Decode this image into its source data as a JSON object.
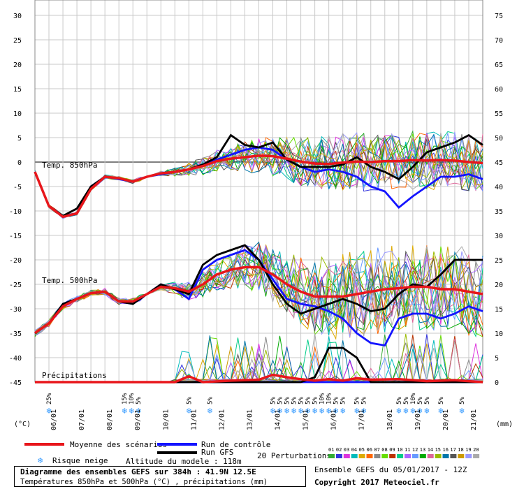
{
  "chart_data": {
    "type": "line",
    "x_labels": [
      "06/01",
      "07/01",
      "08/01",
      "09/01",
      "10/01",
      "11/01",
      "12/01",
      "13/01",
      "14/01",
      "15/01",
      "16/01",
      "17/01",
      "18/01",
      "19/01",
      "20/01",
      "21/01"
    ],
    "x_range_days": [
      0,
      16
    ],
    "left_axis": {
      "unit": "(°C)",
      "ticks": [
        30,
        25,
        20,
        15,
        10,
        5,
        0,
        -5,
        -10,
        -15,
        -20,
        -25,
        -30,
        -35,
        -40,
        -45
      ]
    },
    "right_axis": {
      "unit": "(mm)",
      "ticks": [
        75,
        70,
        65,
        60,
        55,
        50,
        45,
        40,
        35,
        30,
        25,
        20,
        15,
        10,
        5,
        0
      ]
    },
    "panel_labels": {
      "t850": "Temp. 850hPa",
      "t500": "Temp. 500hPa",
      "precip": "Précipitations"
    },
    "snow_risk": [
      {
        "day": 0.5,
        "pct": "25%"
      },
      {
        "day": 3.2,
        "pct": "15%"
      },
      {
        "day": 3.45,
        "pct": "10%"
      },
      {
        "day": 3.7,
        "pct": "5%"
      },
      {
        "day": 5.5,
        "pct": "5%"
      },
      {
        "day": 6.25,
        "pct": "5%"
      },
      {
        "day": 8.5,
        "pct": "5%"
      },
      {
        "day": 8.75,
        "pct": "5%"
      },
      {
        "day": 9.0,
        "pct": "5%"
      },
      {
        "day": 9.25,
        "pct": "5%"
      },
      {
        "day": 9.5,
        "pct": "5%"
      },
      {
        "day": 9.75,
        "pct": "5%"
      },
      {
        "day": 10.0,
        "pct": "5%"
      },
      {
        "day": 10.25,
        "pct": "10%"
      },
      {
        "day": 10.5,
        "pct": "10%"
      },
      {
        "day": 10.75,
        "pct": "5%"
      },
      {
        "day": 11.0,
        "pct": "5%"
      },
      {
        "day": 11.5,
        "pct": "5%"
      },
      {
        "day": 11.75,
        "pct": "5%"
      },
      {
        "day": 13.0,
        "pct": "5%"
      },
      {
        "day": 13.25,
        "pct": "5%"
      },
      {
        "day": 13.5,
        "pct": "10%"
      },
      {
        "day": 13.75,
        "pct": "5%"
      },
      {
        "day": 14.0,
        "pct": "5%"
      },
      {
        "day": 14.5,
        "pct": "5%"
      },
      {
        "day": 15.25,
        "pct": "5%"
      }
    ],
    "series": [
      {
        "name": "Moyenne des scénarios",
        "role": "mean",
        "color": "#e8161b",
        "t850": [
          [
            0,
            -2
          ],
          [
            0.5,
            -9
          ],
          [
            1,
            -11.2
          ],
          [
            1.5,
            -10.5
          ],
          [
            2,
            -5.5
          ],
          [
            2.5,
            -3
          ],
          [
            3,
            -3.3
          ],
          [
            3.5,
            -4
          ],
          [
            4,
            -3
          ],
          [
            4.5,
            -2.3
          ],
          [
            5,
            -2
          ],
          [
            5.5,
            -1.5
          ],
          [
            6,
            -0.8
          ],
          [
            6.5,
            0.2
          ],
          [
            7,
            0.7
          ],
          [
            7.5,
            1
          ],
          [
            8,
            1.3
          ],
          [
            8.5,
            1.2
          ],
          [
            9,
            0.7
          ],
          [
            9.5,
            0.1
          ],
          [
            10,
            -0.3
          ],
          [
            10.5,
            -0.4
          ],
          [
            11,
            -0.1
          ],
          [
            11.5,
            0.1
          ],
          [
            12,
            0
          ],
          [
            12.5,
            0.2
          ],
          [
            13,
            0.2
          ],
          [
            13.5,
            0.4
          ],
          [
            14,
            0.3
          ],
          [
            14.5,
            0.4
          ],
          [
            15,
            0.3
          ],
          [
            15.5,
            0
          ],
          [
            16,
            -0.2
          ]
        ],
        "t500": [
          [
            0,
            -35
          ],
          [
            0.5,
            -33
          ],
          [
            1,
            -29.5
          ],
          [
            1.5,
            -28
          ],
          [
            2,
            -26.8
          ],
          [
            2.5,
            -26.5
          ],
          [
            3,
            -28.5
          ],
          [
            3.5,
            -28.5
          ],
          [
            4,
            -27
          ],
          [
            4.5,
            -25.5
          ],
          [
            5,
            -25.8
          ],
          [
            5.5,
            -26.5
          ],
          [
            6,
            -25
          ],
          [
            6.5,
            -23
          ],
          [
            7,
            -22
          ],
          [
            7.5,
            -21.5
          ],
          [
            8,
            -21.5
          ],
          [
            8.5,
            -23
          ],
          [
            9,
            -25
          ],
          [
            9.5,
            -26.5
          ],
          [
            10,
            -27.5
          ],
          [
            10.5,
            -27.5
          ],
          [
            11,
            -27.5
          ],
          [
            11.5,
            -27
          ],
          [
            12,
            -26.5
          ],
          [
            12.5,
            -26
          ],
          [
            13,
            -25.8
          ],
          [
            13.5,
            -25.5
          ],
          [
            14,
            -25.5
          ],
          [
            14.5,
            -26
          ],
          [
            15,
            -26
          ],
          [
            15.5,
            -26.5
          ],
          [
            16,
            -27
          ]
        ],
        "precip": [
          [
            0,
            0
          ],
          [
            5,
            0
          ],
          [
            5.5,
            1.2
          ],
          [
            6,
            0
          ],
          [
            7,
            0.3
          ],
          [
            8,
            0.5
          ],
          [
            8.5,
            1.5
          ],
          [
            9,
            1
          ],
          [
            9.5,
            0.6
          ],
          [
            10,
            0.3
          ],
          [
            10.5,
            0.6
          ],
          [
            11,
            0.3
          ],
          [
            11.5,
            0.8
          ],
          [
            12,
            0.5
          ],
          [
            13,
            0.6
          ],
          [
            14,
            0.2
          ],
          [
            15,
            0.4
          ],
          [
            16,
            0
          ]
        ]
      },
      {
        "name": "Run de contrôle",
        "role": "control",
        "color": "#1414ff",
        "t850": [
          [
            0,
            -2
          ],
          [
            0.5,
            -9
          ],
          [
            1,
            -11
          ],
          [
            1.5,
            -10.5
          ],
          [
            2,
            -5
          ],
          [
            2.5,
            -3
          ],
          [
            3,
            -3.5
          ],
          [
            3.5,
            -4
          ],
          [
            4,
            -3
          ],
          [
            4.5,
            -2.5
          ],
          [
            5,
            -2
          ],
          [
            5.5,
            -1.5
          ],
          [
            6,
            -0.5
          ],
          [
            6.5,
            0.5
          ],
          [
            7,
            1.5
          ],
          [
            7.5,
            2.5
          ],
          [
            8,
            3
          ],
          [
            8.5,
            2.5
          ],
          [
            9,
            0.5
          ],
          [
            9.5,
            -1
          ],
          [
            10,
            -2
          ],
          [
            10.5,
            -1.5
          ],
          [
            11,
            -2
          ],
          [
            11.5,
            -3
          ],
          [
            12,
            -5
          ],
          [
            12.5,
            -6
          ],
          [
            13,
            -9.3
          ],
          [
            13.5,
            -7
          ],
          [
            14,
            -5
          ],
          [
            14.5,
            -3
          ],
          [
            15,
            -3
          ],
          [
            15.5,
            -2.5
          ],
          [
            16,
            -3.5
          ]
        ],
        "t500": [
          [
            0,
            -35
          ],
          [
            0.5,
            -33
          ],
          [
            1,
            -29
          ],
          [
            1.5,
            -28
          ],
          [
            2,
            -26.8
          ],
          [
            2.5,
            -26.5
          ],
          [
            3,
            -28.5
          ],
          [
            3.5,
            -29
          ],
          [
            4,
            -27
          ],
          [
            4.5,
            -25
          ],
          [
            5,
            -26
          ],
          [
            5.5,
            -28
          ],
          [
            6,
            -22
          ],
          [
            6.5,
            -20
          ],
          [
            7,
            -19
          ],
          [
            7.5,
            -18
          ],
          [
            8,
            -20
          ],
          [
            8.5,
            -24
          ],
          [
            9,
            -28
          ],
          [
            9.5,
            -29
          ],
          [
            10,
            -29.5
          ],
          [
            10.5,
            -30.5
          ],
          [
            11,
            -32
          ],
          [
            11.5,
            -35
          ],
          [
            12,
            -37
          ],
          [
            12.5,
            -37.5
          ],
          [
            13,
            -32
          ],
          [
            13.5,
            -31
          ],
          [
            14,
            -31
          ],
          [
            14.5,
            -32
          ],
          [
            15,
            -31
          ],
          [
            15.5,
            -29.5
          ],
          [
            16,
            -30.5
          ]
        ],
        "precip": [
          [
            0,
            0
          ],
          [
            16,
            0
          ]
        ]
      },
      {
        "name": "Run GFS",
        "role": "gfs",
        "color": "#000000",
        "t850": [
          [
            0,
            -2
          ],
          [
            0.5,
            -9
          ],
          [
            1,
            -11
          ],
          [
            1.5,
            -9.5
          ],
          [
            2,
            -5
          ],
          [
            2.5,
            -3
          ],
          [
            3,
            -3.3
          ],
          [
            3.5,
            -4
          ],
          [
            4,
            -3
          ],
          [
            4.5,
            -2.3
          ],
          [
            5,
            -2
          ],
          [
            5.5,
            -1.5
          ],
          [
            6,
            -0.5
          ],
          [
            6.5,
            1
          ],
          [
            7,
            5.5
          ],
          [
            7.5,
            3.5
          ],
          [
            8,
            3
          ],
          [
            8.5,
            4
          ],
          [
            9,
            0.5
          ],
          [
            9.5,
            -1
          ],
          [
            10,
            -1
          ],
          [
            10.5,
            -1
          ],
          [
            11,
            -0.5
          ],
          [
            11.5,
            1
          ],
          [
            12,
            -1
          ],
          [
            12.5,
            -2
          ],
          [
            13,
            -3.5
          ],
          [
            13.5,
            -1
          ],
          [
            14,
            2
          ],
          [
            14.5,
            3
          ],
          [
            15,
            4
          ],
          [
            15.5,
            5.5
          ],
          [
            16,
            3.5
          ]
        ],
        "t500": [
          [
            0,
            -35
          ],
          [
            0.5,
            -33
          ],
          [
            1,
            -29
          ],
          [
            1.5,
            -28
          ],
          [
            2,
            -26.8
          ],
          [
            2.5,
            -26.5
          ],
          [
            3,
            -28.5
          ],
          [
            3.5,
            -29
          ],
          [
            4,
            -27
          ],
          [
            4.5,
            -25
          ],
          [
            5,
            -26
          ],
          [
            5.5,
            -27
          ],
          [
            6,
            -21
          ],
          [
            6.5,
            -19
          ],
          [
            7,
            -18
          ],
          [
            7.5,
            -17
          ],
          [
            8,
            -20
          ],
          [
            8.5,
            -25
          ],
          [
            9,
            -29
          ],
          [
            9.5,
            -31
          ],
          [
            10,
            -30
          ],
          [
            10.5,
            -29
          ],
          [
            11,
            -28
          ],
          [
            11.5,
            -29
          ],
          [
            12,
            -30.5
          ],
          [
            12.5,
            -30
          ],
          [
            13,
            -27
          ],
          [
            13.5,
            -25
          ],
          [
            14,
            -25.5
          ],
          [
            14.5,
            -23
          ],
          [
            15,
            -20
          ],
          [
            15.5,
            -20
          ],
          [
            16,
            -20
          ]
        ],
        "precip": [
          [
            0,
            0
          ],
          [
            9.5,
            0
          ],
          [
            10,
            1
          ],
          [
            10.5,
            7
          ],
          [
            11,
            7
          ],
          [
            11.5,
            5
          ],
          [
            12,
            0
          ],
          [
            16,
            0
          ]
        ]
      }
    ],
    "legend": {
      "mean": "Moyenne des scénarios",
      "control": "Run de contrôle",
      "gfs": "Run GFS",
      "snow": "Risque neige",
      "altitude": "Altitude du modele : 118m",
      "perturbations": "20 Perturbations",
      "perturbation_numbers": [
        "01",
        "02",
        "03",
        "04",
        "05",
        "06",
        "07",
        "08",
        "09",
        "10",
        "11",
        "12",
        "13",
        "14",
        "15",
        "16",
        "17",
        "18",
        "19",
        "20"
      ],
      "perturbation_colors": [
        "#33aa33",
        "#3333dd",
        "#dd33dd",
        "#00bbbb",
        "#ddaa00",
        "#ff6600",
        "#888888",
        "#66dd00",
        "#bb3300",
        "#00cc88",
        "#aa66ff",
        "#6699ff",
        "#00aa00",
        "#dd6699",
        "#99bb00",
        "#0077aa",
        "#555555",
        "#cc9900",
        "#9999ff",
        "#aaaaaa"
      ]
    }
  },
  "footer": {
    "title": "Diagramme des ensembles GEFS sur 384h : 41.9N 12.5E",
    "subtitle": "Températures 850hPa et 500hPa (°C) , précipitations (mm)",
    "run": "Ensemble GEFS du 05/01/2017 - 12Z",
    "copyright": "Copyright 2017 Meteociel.fr"
  }
}
